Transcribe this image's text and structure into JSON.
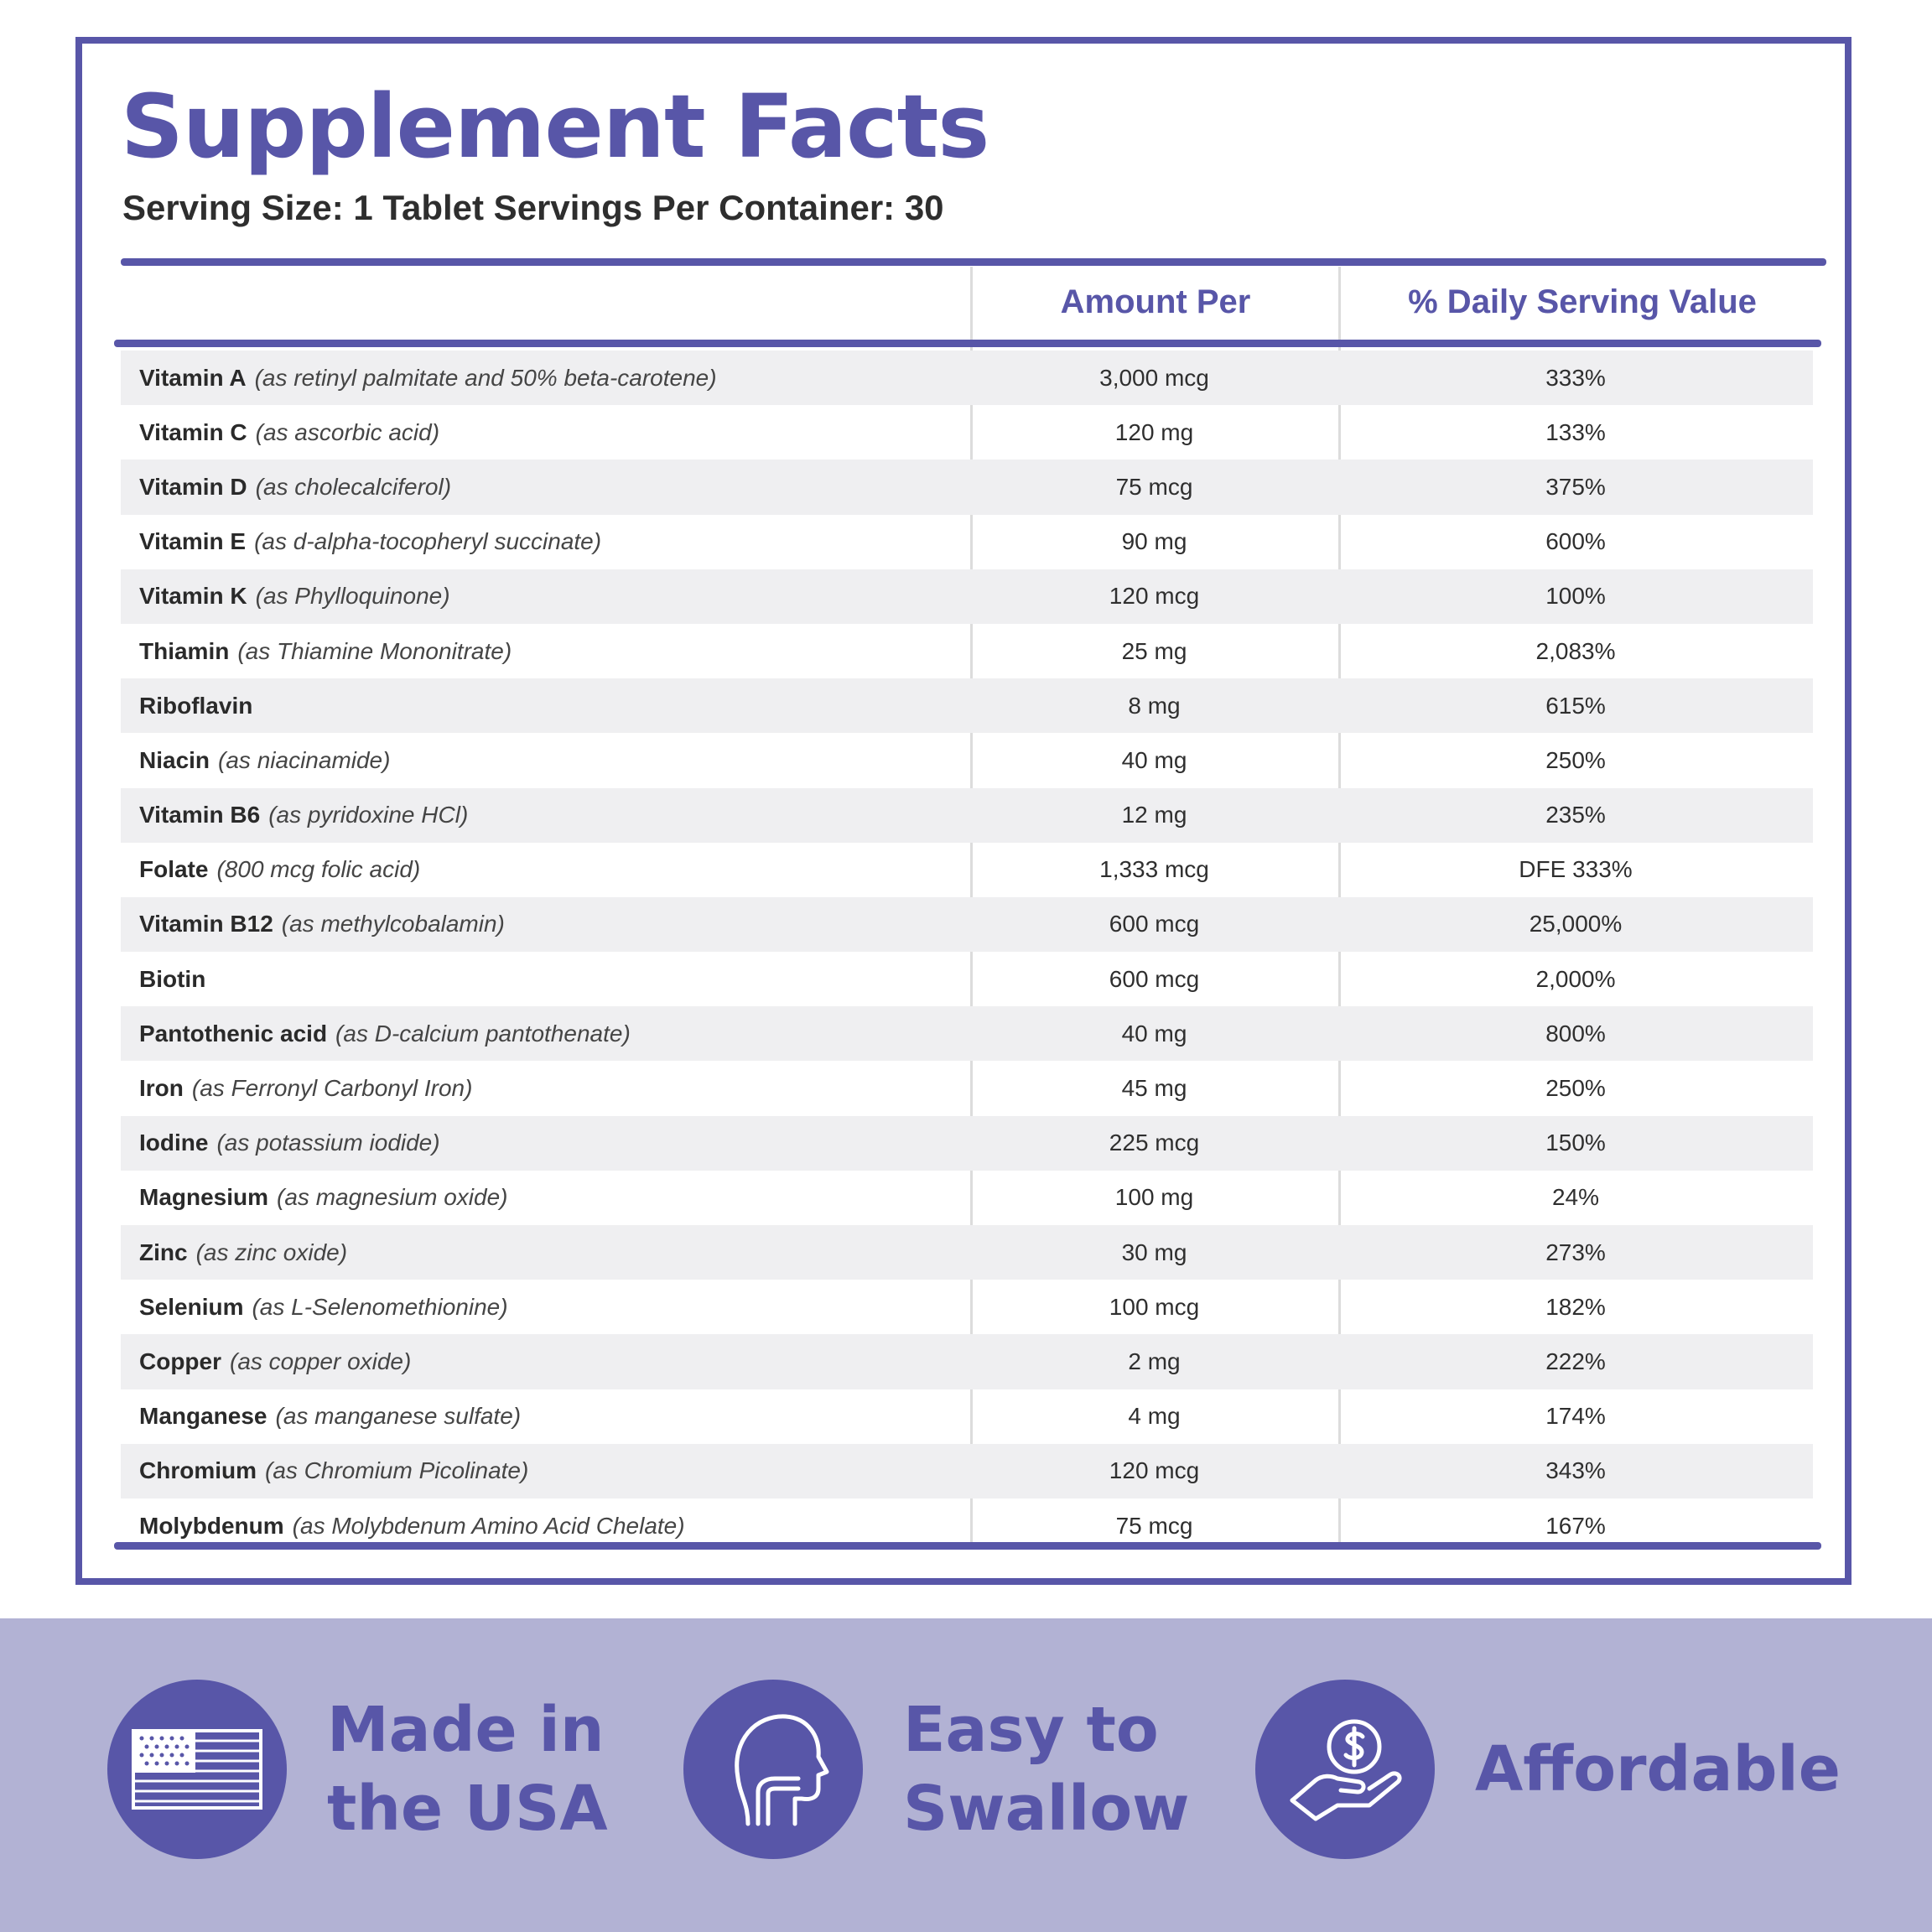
{
  "header": {
    "title": "Supplement Facts",
    "serving": "Serving Size: 1 Tablet Servings Per Container: 30"
  },
  "table": {
    "columns": {
      "amount": "Amount Per",
      "daily_value": "% Daily Serving Value"
    },
    "rows": [
      {
        "name": "Vitamin A",
        "source": "(as retinyl palmitate and 50% beta-carotene)",
        "amount": "3,000 mcg",
        "dv": "333%"
      },
      {
        "name": "Vitamin C",
        "source": "(as ascorbic acid)",
        "amount": "120 mg",
        "dv": "133%"
      },
      {
        "name": "Vitamin D",
        "source": "(as cholecalciferol)",
        "amount": "75 mcg",
        "dv": "375%"
      },
      {
        "name": "Vitamin E",
        "source": "(as d-alpha-tocopheryl succinate)",
        "amount": "90 mg",
        "dv": "600%"
      },
      {
        "name": "Vitamin K",
        "source": "(as Phylloquinone)",
        "amount": "120 mcg",
        "dv": "100%"
      },
      {
        "name": "Thiamin",
        "source": "(as Thiamine Mononitrate)",
        "amount": "25 mg",
        "dv": "2,083%"
      },
      {
        "name": "Riboflavin",
        "source": "",
        "amount": "8 mg",
        "dv": "615%"
      },
      {
        "name": "Niacin",
        "source": "(as niacinamide)",
        "amount": "40 mg",
        "dv": "250%"
      },
      {
        "name": "Vitamin B6",
        "source": "(as pyridoxine HCl)",
        "amount": "12 mg",
        "dv": "235%"
      },
      {
        "name": "Folate",
        "source": "(800 mcg folic acid)",
        "amount": "1,333 mcg",
        "dv": "DFE 333%"
      },
      {
        "name": "Vitamin B12",
        "source": "(as methylcobalamin)",
        "amount": "600 mcg",
        "dv": "25,000%"
      },
      {
        "name": "Biotin",
        "source": "",
        "amount": "600 mcg",
        "dv": "2,000%"
      },
      {
        "name": "Pantothenic acid",
        "source": "(as D-calcium pantothenate)",
        "amount": "40 mg",
        "dv": "800%"
      },
      {
        "name": "Iron",
        "source": "(as Ferronyl Carbonyl Iron)",
        "amount": "45 mg",
        "dv": "250%"
      },
      {
        "name": "Iodine",
        "source": "(as potassium iodide)",
        "amount": "225 mcg",
        "dv": "150%"
      },
      {
        "name": "Magnesium",
        "source": "(as magnesium oxide)",
        "amount": "100 mg",
        "dv": "24%"
      },
      {
        "name": "Zinc",
        "source": "(as zinc oxide)",
        "amount": "30 mg",
        "dv": "273%"
      },
      {
        "name": "Selenium",
        "source": "(as L-Selenomethionine)",
        "amount": "100 mcg",
        "dv": "182%"
      },
      {
        "name": "Copper",
        "source": "(as copper oxide)",
        "amount": "2 mg",
        "dv": "222%"
      },
      {
        "name": "Manganese",
        "source": "(as manganese sulfate)",
        "amount": "4 mg",
        "dv": "174%"
      },
      {
        "name": "Chromium",
        "source": "(as Chromium Picolinate)",
        "amount": "120 mcg",
        "dv": "343%"
      },
      {
        "name": "Molybdenum",
        "source": "(as Molybdenum Amino Acid Chelate)",
        "amount": "75 mcg",
        "dv": "167%"
      }
    ]
  },
  "features": [
    {
      "icon": "us-flag-icon",
      "text": "Made in\nthe USA"
    },
    {
      "icon": "head-throat-icon",
      "text": "Easy to\nSwallow"
    },
    {
      "icon": "hand-dollar-icon",
      "text": "Affordable"
    }
  ],
  "colors": {
    "accent": "#5856a8",
    "footer_bg": "#b2b2d4",
    "row_stripe": "#efeff1"
  }
}
